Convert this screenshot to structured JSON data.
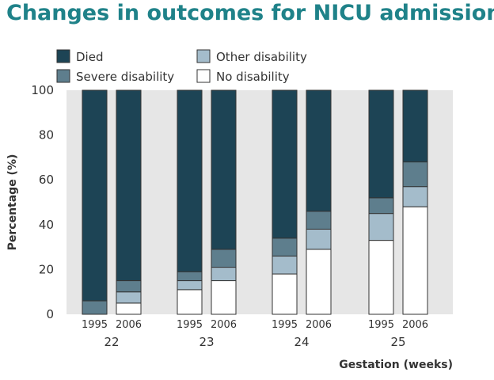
{
  "chart_data": {
    "type": "bar",
    "stacked": true,
    "title": "Changes in outcomes for NICU admissions",
    "xlabel": "Gestation (weeks)",
    "ylabel": "Percentage (%)",
    "ylim": [
      0,
      100
    ],
    "yticks": [
      0,
      20,
      40,
      60,
      80,
      100
    ],
    "grid": false,
    "legend_position": "top-left",
    "groups": [
      {
        "label": "22",
        "bars": [
          {
            "label": "1995",
            "no_disability": 0,
            "other_disability": 0,
            "severe_disability": 6,
            "died": 94
          },
          {
            "label": "2006",
            "no_disability": 5,
            "other_disability": 5,
            "severe_disability": 5,
            "died": 85
          }
        ]
      },
      {
        "label": "23",
        "bars": [
          {
            "label": "1995",
            "no_disability": 11,
            "other_disability": 4,
            "severe_disability": 4,
            "died": 81
          },
          {
            "label": "2006",
            "no_disability": 15,
            "other_disability": 6,
            "severe_disability": 8,
            "died": 71
          }
        ]
      },
      {
        "label": "24",
        "bars": [
          {
            "label": "1995",
            "no_disability": 18,
            "other_disability": 8,
            "severe_disability": 8,
            "died": 66
          },
          {
            "label": "2006",
            "no_disability": 29,
            "other_disability": 9,
            "severe_disability": 8,
            "died": 54
          }
        ]
      },
      {
        "label": "25",
        "bars": [
          {
            "label": "1995",
            "no_disability": 33,
            "other_disability": 12,
            "severe_disability": 7,
            "died": 48
          },
          {
            "label": "2006",
            "no_disability": 48,
            "other_disability": 9,
            "severe_disability": 11,
            "died": 32
          }
        ]
      }
    ],
    "series": [
      {
        "key": "died",
        "name": "Died",
        "color": "#1d4455"
      },
      {
        "key": "severe_disability",
        "name": "Severe disability",
        "color": "#5e7e8d"
      },
      {
        "key": "other_disability",
        "name": "Other disability",
        "color": "#a4bccb"
      },
      {
        "key": "no_disability",
        "name": "No disability",
        "color": "#ffffff"
      }
    ],
    "plot_background": "#e6e6e6",
    "title_color": "#1f8289"
  }
}
